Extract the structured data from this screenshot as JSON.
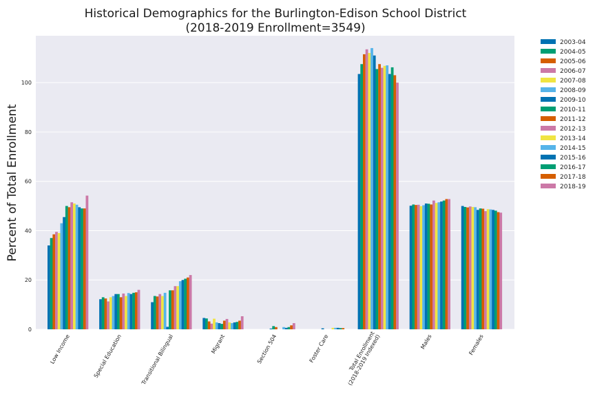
{
  "chart_data": {
    "type": "bar",
    "title": "Historical Demographics for the Burlington-Edison School District",
    "subtitle": "(2018-2019 Enrollment=3549)",
    "xlabel": "",
    "ylabel": "Percent of Total Enrollment",
    "ylim": [
      0,
      119
    ],
    "yticks": [
      0,
      20,
      40,
      60,
      80,
      100
    ],
    "grid": true,
    "legend_position": "outside-right",
    "categories": [
      [
        "Low Income"
      ],
      [
        "Special Education"
      ],
      [
        "Transitional Bilingual"
      ],
      [
        "Migrant"
      ],
      [
        "Section 504"
      ],
      [
        "Foster Care"
      ],
      [
        "Total Enrollment",
        "(2018-2019 Indexed)"
      ],
      [
        "Males"
      ],
      [
        "Females"
      ]
    ],
    "series": [
      {
        "name": "2003-04",
        "color": "#0072b2",
        "values": [
          34.0,
          12.2,
          11.0,
          4.6,
          0.0,
          0.0,
          103.5,
          50.1,
          50.0
        ]
      },
      {
        "name": "2004-05",
        "color": "#009e73",
        "values": [
          37.0,
          13.0,
          13.5,
          4.4,
          0.0,
          0.0,
          107.5,
          50.6,
          49.6
        ]
      },
      {
        "name": "2005-06",
        "color": "#d55e00",
        "values": [
          38.5,
          12.5,
          13.3,
          3.2,
          0.0,
          0.0,
          111.5,
          50.4,
          49.4
        ]
      },
      {
        "name": "2006-07",
        "color": "#cc79a7",
        "values": [
          39.5,
          11.3,
          14.3,
          2.3,
          0.0,
          0.0,
          113.5,
          50.5,
          49.8
        ]
      },
      {
        "name": "2007-08",
        "color": "#f0e442",
        "values": [
          39.0,
          13.0,
          13.5,
          4.3,
          0.0,
          0.0,
          112.0,
          49.9,
          49.6
        ]
      },
      {
        "name": "2008-09",
        "color": "#56b4e9",
        "values": [
          43.0,
          13.5,
          14.8,
          2.8,
          0.0,
          0.0,
          114.0,
          50.3,
          49.5
        ]
      },
      {
        "name": "2009-10",
        "color": "#0072b2",
        "values": [
          45.5,
          14.3,
          1.0,
          2.5,
          0.3,
          0.4,
          111.0,
          51.0,
          48.4
        ]
      },
      {
        "name": "2010-11",
        "color": "#009e73",
        "values": [
          50.0,
          14.3,
          15.8,
          2.2,
          1.3,
          0.0,
          105.5,
          50.9,
          49.0
        ]
      },
      {
        "name": "2011-12",
        "color": "#d55e00",
        "values": [
          49.5,
          13.0,
          15.8,
          3.5,
          0.9,
          0.0,
          107.5,
          50.6,
          48.9
        ]
      },
      {
        "name": "2012-13",
        "color": "#cc79a7",
        "values": [
          51.5,
          14.5,
          17.5,
          4.2,
          0.0,
          0.0,
          106.0,
          52.2,
          47.9
        ]
      },
      {
        "name": "2013-14",
        "color": "#f0e442",
        "values": [
          51.0,
          13.5,
          17.5,
          2.8,
          0.0,
          0.6,
          106.8,
          51.2,
          48.7
        ]
      },
      {
        "name": "2014-15",
        "color": "#56b4e9",
        "values": [
          50.5,
          14.7,
          19.5,
          2.5,
          0.9,
          0.6,
          107.0,
          51.5,
          48.6
        ]
      },
      {
        "name": "2015-16",
        "color": "#0072b2",
        "values": [
          49.5,
          14.3,
          20.0,
          2.8,
          0.6,
          0.6,
          103.5,
          51.8,
          48.4
        ]
      },
      {
        "name": "2016-17",
        "color": "#009e73",
        "values": [
          49.0,
          14.8,
          20.5,
          3.0,
          0.9,
          0.5,
          106.2,
          52.2,
          48.1
        ]
      },
      {
        "name": "2017-18",
        "color": "#d55e00",
        "values": [
          49.0,
          15.0,
          21.0,
          3.5,
          1.6,
          0.5,
          103.0,
          52.8,
          47.5
        ]
      },
      {
        "name": "2018-19",
        "color": "#cc79a7",
        "values": [
          54.2,
          16.0,
          22.0,
          5.3,
          2.5,
          0.0,
          100.0,
          52.8,
          47.3
        ]
      }
    ]
  }
}
